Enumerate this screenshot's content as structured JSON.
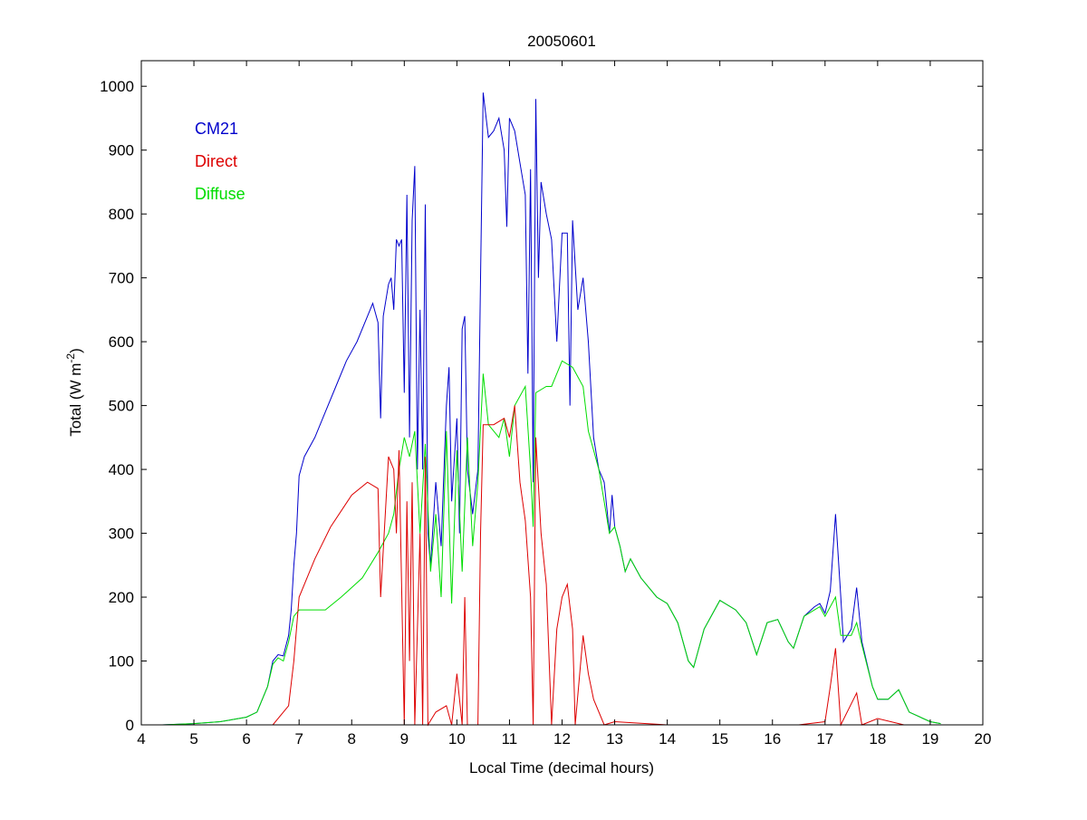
{
  "chart_data": {
    "type": "line",
    "title": "20050601",
    "xlabel": "Local Time (decimal hours)",
    "ylabel": {
      "main": "Total (W m",
      "sup": "-2",
      "end": ")"
    },
    "xlim": [
      4,
      20
    ],
    "ylim": [
      0,
      1040
    ],
    "xticks": [
      4,
      5,
      6,
      7,
      8,
      9,
      10,
      11,
      12,
      13,
      14,
      15,
      16,
      17,
      18,
      19,
      20
    ],
    "yticks": [
      0,
      100,
      200,
      300,
      400,
      500,
      600,
      700,
      800,
      900,
      1000
    ],
    "grid": false,
    "legend_placement": "top-left",
    "series": [
      {
        "name": "CM21",
        "color": "#0000cc",
        "points": [
          [
            4.4,
            0
          ],
          [
            5,
            2
          ],
          [
            5.5,
            5
          ],
          [
            6,
            12
          ],
          [
            6.2,
            20
          ],
          [
            6.4,
            60
          ],
          [
            6.5,
            100
          ],
          [
            6.6,
            110
          ],
          [
            6.7,
            108
          ],
          [
            6.8,
            140
          ],
          [
            6.85,
            180
          ],
          [
            6.9,
            250
          ],
          [
            6.95,
            300
          ],
          [
            7.0,
            390
          ],
          [
            7.1,
            420
          ],
          [
            7.3,
            450
          ],
          [
            7.5,
            490
          ],
          [
            7.7,
            530
          ],
          [
            7.9,
            570
          ],
          [
            8.1,
            600
          ],
          [
            8.3,
            640
          ],
          [
            8.4,
            660
          ],
          [
            8.5,
            630
          ],
          [
            8.55,
            480
          ],
          [
            8.6,
            640
          ],
          [
            8.7,
            690
          ],
          [
            8.75,
            700
          ],
          [
            8.8,
            650
          ],
          [
            8.85,
            760
          ],
          [
            8.9,
            750
          ],
          [
            8.95,
            760
          ],
          [
            9.0,
            520
          ],
          [
            9.05,
            830
          ],
          [
            9.1,
            450
          ],
          [
            9.15,
            790
          ],
          [
            9.2,
            875
          ],
          [
            9.25,
            400
          ],
          [
            9.3,
            650
          ],
          [
            9.35,
            400
          ],
          [
            9.4,
            815
          ],
          [
            9.45,
            300
          ],
          [
            9.5,
            250
          ],
          [
            9.6,
            380
          ],
          [
            9.7,
            280
          ],
          [
            9.8,
            500
          ],
          [
            9.85,
            560
          ],
          [
            9.9,
            350
          ],
          [
            10.0,
            480
          ],
          [
            10.05,
            300
          ],
          [
            10.1,
            620
          ],
          [
            10.15,
            640
          ],
          [
            10.2,
            400
          ],
          [
            10.3,
            330
          ],
          [
            10.4,
            400
          ],
          [
            10.45,
            700
          ],
          [
            10.5,
            990
          ],
          [
            10.6,
            920
          ],
          [
            10.7,
            930
          ],
          [
            10.8,
            950
          ],
          [
            10.9,
            900
          ],
          [
            10.95,
            780
          ],
          [
            11.0,
            950
          ],
          [
            11.1,
            930
          ],
          [
            11.2,
            880
          ],
          [
            11.3,
            830
          ],
          [
            11.35,
            550
          ],
          [
            11.4,
            870
          ],
          [
            11.45,
            380
          ],
          [
            11.5,
            980
          ],
          [
            11.55,
            700
          ],
          [
            11.6,
            850
          ],
          [
            11.7,
            800
          ],
          [
            11.8,
            760
          ],
          [
            11.9,
            600
          ],
          [
            12.0,
            770
          ],
          [
            12.1,
            770
          ],
          [
            12.15,
            500
          ],
          [
            12.2,
            790
          ],
          [
            12.3,
            650
          ],
          [
            12.4,
            700
          ],
          [
            12.5,
            600
          ],
          [
            12.6,
            450
          ],
          [
            12.7,
            400
          ],
          [
            12.8,
            380
          ],
          [
            12.9,
            300
          ],
          [
            12.95,
            360
          ],
          [
            13.0,
            310
          ],
          [
            13.1,
            280
          ],
          [
            13.2,
            240
          ],
          [
            13.3,
            260
          ],
          [
            13.5,
            230
          ],
          [
            13.8,
            200
          ],
          [
            14.0,
            190
          ],
          [
            14.2,
            160
          ],
          [
            14.4,
            100
          ],
          [
            14.5,
            90
          ],
          [
            14.7,
            150
          ],
          [
            15.0,
            195
          ],
          [
            15.3,
            180
          ],
          [
            15.5,
            160
          ],
          [
            15.7,
            110
          ],
          [
            15.9,
            160
          ],
          [
            16.1,
            165
          ],
          [
            16.3,
            130
          ],
          [
            16.4,
            120
          ],
          [
            16.6,
            170
          ],
          [
            16.8,
            185
          ],
          [
            16.9,
            190
          ],
          [
            17.0,
            175
          ],
          [
            17.1,
            210
          ],
          [
            17.2,
            330
          ],
          [
            17.3,
            200
          ],
          [
            17.35,
            130
          ],
          [
            17.5,
            150
          ],
          [
            17.6,
            215
          ],
          [
            17.7,
            130
          ],
          [
            17.9,
            60
          ],
          [
            18.0,
            40
          ],
          [
            18.2,
            40
          ],
          [
            18.4,
            55
          ],
          [
            18.6,
            20
          ],
          [
            19.0,
            5
          ],
          [
            19.2,
            2
          ]
        ]
      },
      {
        "name": "Direct",
        "color": "#dd0000",
        "points": [
          [
            6.2,
            0
          ],
          [
            6.5,
            0
          ],
          [
            6.8,
            30
          ],
          [
            6.9,
            100
          ],
          [
            7.0,
            200
          ],
          [
            7.3,
            260
          ],
          [
            7.6,
            310
          ],
          [
            8.0,
            360
          ],
          [
            8.3,
            380
          ],
          [
            8.5,
            370
          ],
          [
            8.55,
            200
          ],
          [
            8.7,
            420
          ],
          [
            8.8,
            400
          ],
          [
            8.85,
            300
          ],
          [
            8.9,
            430
          ],
          [
            9.0,
            0
          ],
          [
            9.05,
            350
          ],
          [
            9.1,
            100
          ],
          [
            9.15,
            380
          ],
          [
            9.2,
            0
          ],
          [
            9.3,
            300
          ],
          [
            9.35,
            0
          ],
          [
            9.4,
            420
          ],
          [
            9.45,
            0
          ],
          [
            9.6,
            20
          ],
          [
            9.8,
            30
          ],
          [
            9.9,
            0
          ],
          [
            10.0,
            80
          ],
          [
            10.1,
            0
          ],
          [
            10.15,
            200
          ],
          [
            10.2,
            0
          ],
          [
            10.4,
            0
          ],
          [
            10.45,
            300
          ],
          [
            10.5,
            470
          ],
          [
            10.7,
            470
          ],
          [
            10.9,
            480
          ],
          [
            11.0,
            450
          ],
          [
            11.1,
            500
          ],
          [
            11.2,
            380
          ],
          [
            11.3,
            320
          ],
          [
            11.4,
            200
          ],
          [
            11.45,
            0
          ],
          [
            11.5,
            450
          ],
          [
            11.6,
            300
          ],
          [
            11.7,
            220
          ],
          [
            11.8,
            0
          ],
          [
            11.9,
            150
          ],
          [
            12.0,
            200
          ],
          [
            12.1,
            220
          ],
          [
            12.2,
            150
          ],
          [
            12.25,
            0
          ],
          [
            12.4,
            140
          ],
          [
            12.5,
            80
          ],
          [
            12.6,
            40
          ],
          [
            12.8,
            0
          ],
          [
            13.0,
            5
          ],
          [
            14.0,
            0
          ],
          [
            16.5,
            0
          ],
          [
            17.0,
            5
          ],
          [
            17.1,
            60
          ],
          [
            17.2,
            120
          ],
          [
            17.3,
            0
          ],
          [
            17.6,
            50
          ],
          [
            17.7,
            0
          ],
          [
            18.0,
            10
          ],
          [
            18.5,
            0
          ]
        ]
      },
      {
        "name": "Diffuse",
        "color": "#00dd00",
        "points": [
          [
            4.4,
            0
          ],
          [
            5,
            2
          ],
          [
            5.5,
            5
          ],
          [
            6,
            12
          ],
          [
            6.2,
            20
          ],
          [
            6.4,
            60
          ],
          [
            6.5,
            95
          ],
          [
            6.6,
            105
          ],
          [
            6.7,
            100
          ],
          [
            6.8,
            130
          ],
          [
            6.9,
            170
          ],
          [
            7.0,
            180
          ],
          [
            7.5,
            180
          ],
          [
            7.8,
            200
          ],
          [
            8.2,
            230
          ],
          [
            8.5,
            270
          ],
          [
            8.7,
            300
          ],
          [
            8.8,
            330
          ],
          [
            8.9,
            400
          ],
          [
            9.0,
            450
          ],
          [
            9.1,
            420
          ],
          [
            9.2,
            460
          ],
          [
            9.3,
            300
          ],
          [
            9.4,
            440
          ],
          [
            9.5,
            240
          ],
          [
            9.6,
            330
          ],
          [
            9.7,
            200
          ],
          [
            9.8,
            460
          ],
          [
            9.9,
            190
          ],
          [
            10.0,
            430
          ],
          [
            10.1,
            240
          ],
          [
            10.2,
            450
          ],
          [
            10.3,
            280
          ],
          [
            10.4,
            380
          ],
          [
            10.5,
            550
          ],
          [
            10.6,
            470
          ],
          [
            10.8,
            450
          ],
          [
            10.9,
            480
          ],
          [
            11.0,
            420
          ],
          [
            11.1,
            500
          ],
          [
            11.3,
            530
          ],
          [
            11.4,
            400
          ],
          [
            11.45,
            310
          ],
          [
            11.5,
            520
          ],
          [
            11.7,
            530
          ],
          [
            11.8,
            530
          ],
          [
            12.0,
            570
          ],
          [
            12.2,
            560
          ],
          [
            12.4,
            530
          ],
          [
            12.5,
            460
          ],
          [
            12.6,
            430
          ],
          [
            12.7,
            400
          ],
          [
            12.9,
            300
          ],
          [
            13.0,
            310
          ],
          [
            13.1,
            280
          ],
          [
            13.2,
            240
          ],
          [
            13.3,
            260
          ],
          [
            13.5,
            230
          ],
          [
            13.8,
            200
          ],
          [
            14.0,
            190
          ],
          [
            14.2,
            160
          ],
          [
            14.4,
            100
          ],
          [
            14.5,
            90
          ],
          [
            14.7,
            150
          ],
          [
            15.0,
            195
          ],
          [
            15.3,
            180
          ],
          [
            15.5,
            160
          ],
          [
            15.7,
            110
          ],
          [
            15.9,
            160
          ],
          [
            16.1,
            165
          ],
          [
            16.3,
            130
          ],
          [
            16.4,
            120
          ],
          [
            16.6,
            170
          ],
          [
            16.8,
            180
          ],
          [
            16.9,
            185
          ],
          [
            17.0,
            170
          ],
          [
            17.2,
            200
          ],
          [
            17.3,
            140
          ],
          [
            17.5,
            140
          ],
          [
            17.6,
            160
          ],
          [
            17.7,
            125
          ],
          [
            17.9,
            60
          ],
          [
            18.0,
            40
          ],
          [
            18.2,
            40
          ],
          [
            18.4,
            55
          ],
          [
            18.6,
            20
          ],
          [
            19.0,
            5
          ],
          [
            19.2,
            2
          ]
        ]
      }
    ]
  }
}
